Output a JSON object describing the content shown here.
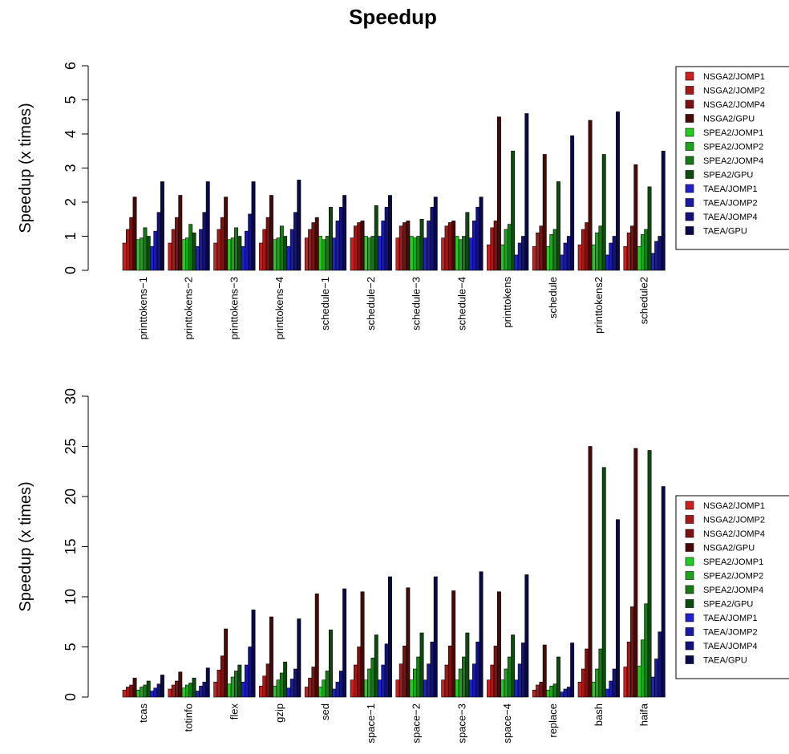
{
  "title": "Speedup",
  "series_names": [
    "NSGA2/JOMP1",
    "NSGA2/JOMP2",
    "NSGA2/JOMP4",
    "NSGA2/GPU",
    "SPEA2/JOMP1",
    "SPEA2/JOMP2",
    "SPEA2/JOMP4",
    "SPEA2/GPU",
    "TAEA/JOMP1",
    "TAEA/JOMP2",
    "TAEA/JOMP4",
    "TAEA/GPU"
  ],
  "series_colors": [
    "#cc1f1f",
    "#a31919",
    "#7a1212",
    "#4a0909",
    "#22cc22",
    "#1ea31e",
    "#177a17",
    "#0d4a0d",
    "#2020cc",
    "#1919a3",
    "#12127a",
    "#09094a"
  ],
  "chart_data": [
    {
      "type": "bar",
      "title": "Speedup",
      "ylabel": "Speedup (x times)",
      "xlabel": "",
      "ylim": [
        0,
        6
      ],
      "yticks": [
        "0",
        "1",
        "2",
        "3",
        "4",
        "5",
        "6"
      ],
      "legend": "right",
      "grid": false,
      "categories": [
        "printtokens−1",
        "printtokens−2",
        "printtokens−3",
        "printtokens−4",
        "schedule−1",
        "schedule−2",
        "schedule−3",
        "schedule−4",
        "printtokens",
        "schedule",
        "printtokens2",
        "schedule2"
      ],
      "series": [
        {
          "name": "NSGA2/JOMP1",
          "values": [
            0.8,
            0.8,
            0.8,
            0.8,
            0.95,
            0.95,
            0.95,
            0.95,
            0.75,
            0.7,
            0.75,
            0.7
          ]
        },
        {
          "name": "NSGA2/JOMP2",
          "values": [
            1.2,
            1.2,
            1.2,
            1.2,
            1.2,
            1.3,
            1.3,
            1.3,
            1.25,
            1.1,
            1.2,
            1.1
          ]
        },
        {
          "name": "NSGA2/JOMP4",
          "values": [
            1.55,
            1.55,
            1.55,
            1.55,
            1.4,
            1.4,
            1.4,
            1.4,
            1.45,
            1.3,
            1.4,
            1.3
          ]
        },
        {
          "name": "NSGA2/GPU",
          "values": [
            2.15,
            2.2,
            2.15,
            2.2,
            1.55,
            1.45,
            1.45,
            1.45,
            4.5,
            3.4,
            4.4,
            3.1
          ]
        },
        {
          "name": "SPEA2/JOMP1",
          "values": [
            0.9,
            0.9,
            0.9,
            0.9,
            1.0,
            1.0,
            1.0,
            1.0,
            0.75,
            0.7,
            0.75,
            0.7
          ]
        },
        {
          "name": "SPEA2/JOMP2",
          "values": [
            0.95,
            0.95,
            0.95,
            0.95,
            0.9,
            0.95,
            0.95,
            0.9,
            1.2,
            1.05,
            1.1,
            1.05
          ]
        },
        {
          "name": "SPEA2/JOMP4",
          "values": [
            1.25,
            1.35,
            1.25,
            1.3,
            1.0,
            1.0,
            1.0,
            1.0,
            1.35,
            1.2,
            1.3,
            1.2
          ]
        },
        {
          "name": "SPEA2/GPU",
          "values": [
            1.0,
            1.1,
            1.0,
            1.0,
            1.85,
            1.9,
            1.5,
            1.7,
            3.5,
            2.6,
            3.4,
            2.45
          ]
        },
        {
          "name": "TAEA/JOMP1",
          "values": [
            0.7,
            0.7,
            0.7,
            0.7,
            0.95,
            1.0,
            0.95,
            0.95,
            0.45,
            0.45,
            0.45,
            0.5
          ]
        },
        {
          "name": "TAEA/JOMP2",
          "values": [
            1.15,
            1.2,
            1.15,
            1.2,
            1.45,
            1.45,
            1.45,
            1.45,
            0.8,
            0.8,
            0.8,
            0.85
          ]
        },
        {
          "name": "TAEA/JOMP4",
          "values": [
            1.7,
            1.7,
            1.65,
            1.7,
            1.85,
            1.85,
            1.85,
            1.85,
            1.0,
            1.0,
            1.0,
            1.0
          ]
        },
        {
          "name": "TAEA/GPU",
          "values": [
            2.6,
            2.6,
            2.6,
            2.65,
            2.2,
            2.2,
            2.15,
            2.15,
            4.6,
            3.95,
            4.65,
            3.5
          ]
        }
      ]
    },
    {
      "type": "bar",
      "title": "",
      "ylabel": "Speedup (x times)",
      "xlabel": "",
      "ylim": [
        0,
        30
      ],
      "yticks": [
        "0",
        "5",
        "10",
        "15",
        "20",
        "25",
        "30"
      ],
      "legend": "right",
      "grid": false,
      "categories": [
        "tcas",
        "totinfo",
        "flex",
        "gzip",
        "sed",
        "space−1",
        "space−2",
        "space−3",
        "space−4",
        "replace",
        "bash",
        "haifa"
      ],
      "series": [
        {
          "name": "NSGA2/JOMP1",
          "values": [
            0.7,
            0.8,
            1.5,
            1.1,
            1.0,
            1.7,
            1.7,
            1.7,
            1.7,
            0.7,
            1.5,
            3.0
          ]
        },
        {
          "name": "NSGA2/JOMP2",
          "values": [
            1.0,
            1.2,
            2.7,
            2.1,
            1.9,
            3.2,
            3.3,
            3.2,
            3.2,
            1.2,
            2.8,
            5.5
          ]
        },
        {
          "name": "NSGA2/JOMP4",
          "values": [
            1.2,
            1.6,
            4.1,
            3.3,
            3.0,
            5.0,
            5.1,
            5.1,
            5.1,
            1.5,
            4.8,
            9.0
          ]
        },
        {
          "name": "NSGA2/GPU",
          "values": [
            1.9,
            2.5,
            6.8,
            8.0,
            10.3,
            10.5,
            10.9,
            10.6,
            10.5,
            5.2,
            25.0,
            24.8
          ]
        },
        {
          "name": "SPEA2/JOMP1",
          "values": [
            0.7,
            0.9,
            1.3,
            1.1,
            1.0,
            1.7,
            1.7,
            1.7,
            1.7,
            0.7,
            1.5,
            3.1
          ]
        },
        {
          "name": "SPEA2/JOMP2",
          "values": [
            1.0,
            1.2,
            2.0,
            1.7,
            1.7,
            2.8,
            2.8,
            2.8,
            2.8,
            1.1,
            2.8,
            5.7
          ]
        },
        {
          "name": "SPEA2/JOMP4",
          "values": [
            1.2,
            1.4,
            2.6,
            2.4,
            2.6,
            3.9,
            4.0,
            4.0,
            4.0,
            1.3,
            4.8,
            9.3
          ]
        },
        {
          "name": "SPEA2/GPU",
          "values": [
            1.6,
            1.9,
            3.2,
            3.5,
            6.7,
            6.2,
            6.4,
            6.4,
            6.2,
            4.0,
            22.9,
            24.6
          ]
        },
        {
          "name": "TAEA/JOMP1",
          "values": [
            0.6,
            0.6,
            1.5,
            0.9,
            0.8,
            1.7,
            1.7,
            1.7,
            1.7,
            0.5,
            0.8,
            2.0
          ]
        },
        {
          "name": "TAEA/JOMP2",
          "values": [
            0.9,
            1.1,
            3.2,
            1.8,
            1.5,
            3.2,
            3.3,
            3.3,
            3.3,
            0.8,
            1.6,
            3.8
          ]
        },
        {
          "name": "TAEA/JOMP4",
          "values": [
            1.3,
            1.5,
            5.0,
            2.8,
            2.6,
            5.3,
            5.5,
            5.5,
            5.4,
            1.0,
            2.8,
            6.5
          ]
        },
        {
          "name": "TAEA/GPU",
          "values": [
            2.2,
            2.9,
            8.7,
            7.8,
            10.8,
            12.0,
            12.0,
            12.5,
            12.2,
            5.4,
            17.7,
            21.0
          ]
        }
      ]
    }
  ]
}
